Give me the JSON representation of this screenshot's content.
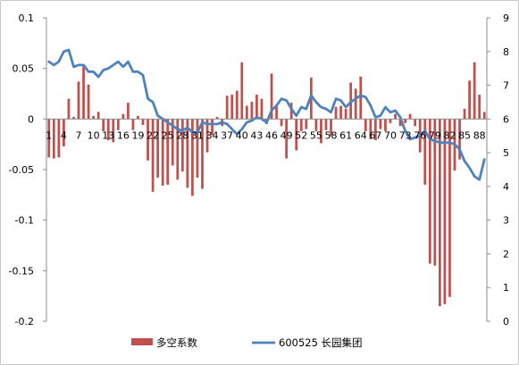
{
  "chart_data": {
    "type": "bar+line",
    "title": "",
    "categories": [
      "1",
      "2",
      "3",
      "4",
      "5",
      "6",
      "7",
      "8",
      "9",
      "10",
      "11",
      "12",
      "13",
      "14",
      "15",
      "16",
      "17",
      "18",
      "19",
      "20",
      "21",
      "22",
      "23",
      "24",
      "25",
      "26",
      "27",
      "28",
      "29",
      "30",
      "31",
      "32",
      "33",
      "34",
      "35",
      "36",
      "37",
      "38",
      "39",
      "40",
      "41",
      "42",
      "43",
      "44",
      "45",
      "46",
      "47",
      "48",
      "49",
      "50",
      "51",
      "52",
      "53",
      "54",
      "55",
      "56",
      "57",
      "58",
      "59",
      "60",
      "61",
      "62",
      "63",
      "64",
      "65",
      "66",
      "67",
      "68",
      "69",
      "70",
      "71",
      "72",
      "73",
      "74",
      "75",
      "76",
      "77",
      "78",
      "79",
      "80",
      "81",
      "82",
      "83",
      "84",
      "85",
      "86",
      "87",
      "88",
      "89"
    ],
    "x_tick_labels": [
      "1",
      "4",
      "7",
      "10",
      "13",
      "16",
      "19",
      "22",
      "25",
      "28",
      "31",
      "34",
      "37",
      "40",
      "43",
      "46",
      "49",
      "52",
      "55",
      "58",
      "61",
      "64",
      "67",
      "70",
      "73",
      "76",
      "79",
      "82",
      "85",
      "88"
    ],
    "y_left": {
      "ylim": [
        -0.2,
        0.1
      ],
      "ticks": [
        "0.1",
        "0.05",
        "0",
        "-0.05",
        "-0.1",
        "-0.15",
        "-0.2"
      ]
    },
    "y_right": {
      "ylim": [
        0,
        9
      ],
      "ticks": [
        "9",
        "8",
        "7",
        "6",
        "5",
        "4",
        "3",
        "2",
        "1",
        "0"
      ]
    },
    "grid": false,
    "legend_position": "bottom",
    "series": [
      {
        "name": "多空系数",
        "type": "bar",
        "axis": "left",
        "color": "#c0504d",
        "values": [
          -0.038,
          -0.039,
          -0.038,
          -0.027,
          0.02,
          0.002,
          0.037,
          0.052,
          0.034,
          0.003,
          0.007,
          -0.012,
          -0.021,
          -0.023,
          -0.011,
          0.005,
          0.016,
          -0.011,
          0.003,
          -0.006,
          -0.041,
          -0.072,
          -0.058,
          -0.066,
          -0.065,
          -0.046,
          -0.06,
          -0.052,
          -0.068,
          -0.076,
          -0.058,
          -0.069,
          -0.033,
          -0.016,
          0.002,
          -0.007,
          0.023,
          0.024,
          0.028,
          0.056,
          0.013,
          0.017,
          0.024,
          0.02,
          -0.005,
          0.045,
          0.013,
          -0.007,
          -0.039,
          0.016,
          -0.031,
          -0.012,
          -0.01,
          0.041,
          -0.012,
          -0.024,
          -0.011,
          -0.017,
          0.012,
          0.013,
          0.01,
          0.036,
          0.03,
          0.042,
          -0.012,
          -0.02,
          -0.021,
          -0.01,
          -0.012,
          -0.004,
          0.005,
          -0.007,
          -0.004,
          0.005,
          -0.007,
          -0.033,
          -0.065,
          -0.143,
          -0.145,
          -0.185,
          -0.183,
          -0.176,
          -0.051,
          -0.04,
          0.01,
          0.038,
          0.056,
          0.024,
          0.007
        ]
      },
      {
        "name": "600525 长园集团",
        "type": "line",
        "axis": "right",
        "color": "#4f81bd",
        "values": [
          7.7,
          7.6,
          7.7,
          8.0,
          8.05,
          7.55,
          7.6,
          7.6,
          7.4,
          7.4,
          7.25,
          7.45,
          7.5,
          7.6,
          7.7,
          7.55,
          7.7,
          7.4,
          7.4,
          7.3,
          6.6,
          6.5,
          6.1,
          6.0,
          5.9,
          5.8,
          5.7,
          5.65,
          5.75,
          5.6,
          5.6,
          5.9,
          5.85,
          5.85,
          5.85,
          5.9,
          5.85,
          5.7,
          5.55,
          5.7,
          5.9,
          5.95,
          6.05,
          6.0,
          5.9,
          6.25,
          6.4,
          6.6,
          6.55,
          6.3,
          6.1,
          6.35,
          6.3,
          6.7,
          6.5,
          6.35,
          6.3,
          6.2,
          6.6,
          6.55,
          6.35,
          6.5,
          6.6,
          6.7,
          6.65,
          6.4,
          6.05,
          6.1,
          6.35,
          6.2,
          6.25,
          6.05,
          5.65,
          5.4,
          5.45,
          5.5,
          5.65,
          5.4,
          5.35,
          5.3,
          5.3,
          5.3,
          5.25,
          5.1,
          4.75,
          4.55,
          4.3,
          4.2,
          4.8
        ]
      }
    ]
  }
}
